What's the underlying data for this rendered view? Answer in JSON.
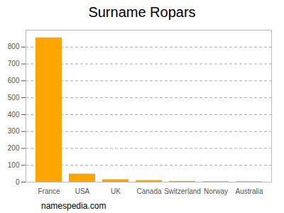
{
  "chart_data": {
    "type": "bar",
    "title": "Surname Ropars",
    "categories": [
      "France",
      "USA",
      "UK",
      "Canada",
      "Switzerland",
      "Norway",
      "Australia"
    ],
    "values": [
      855,
      48,
      15,
      10,
      5,
      3,
      3
    ],
    "color": "#ffa500",
    "ylim": [
      0,
      900
    ],
    "yticks": [
      0,
      100,
      200,
      300,
      400,
      500,
      600,
      700,
      800
    ],
    "grid": true,
    "caption": "namespedia.com"
  }
}
